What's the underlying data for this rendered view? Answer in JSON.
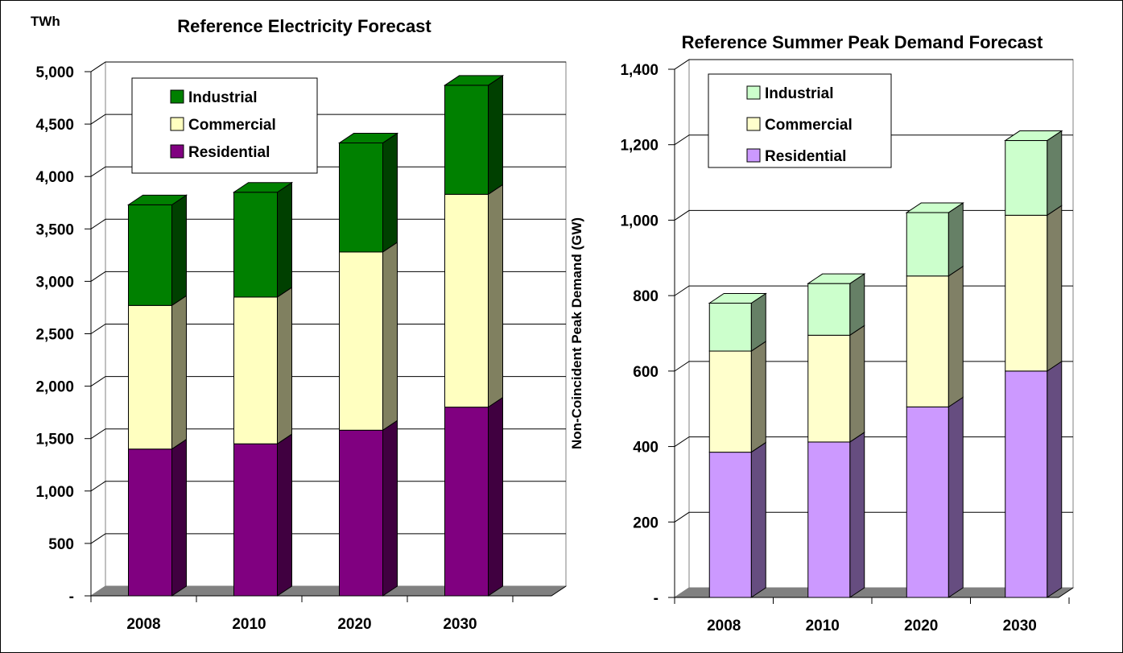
{
  "chart_data": [
    {
      "type": "bar",
      "stacked": true,
      "style": "3d-stacked-column",
      "title": "Reference Electricity Forecast",
      "unit_label": "TWh",
      "ylabel": "",
      "xlabel": "",
      "categories": [
        "2008",
        "2010",
        "2020",
        "2030"
      ],
      "ylim": [
        0,
        5000
      ],
      "yticks": [
        "-",
        "500",
        "1,000",
        "1,500",
        "2,000",
        "2,500",
        "3,000",
        "3,500",
        "4,000",
        "4,500",
        "5,000"
      ],
      "grid": true,
      "legend_position": "top-left",
      "legend_order": [
        "Industrial",
        "Commercial",
        "Residential"
      ],
      "series": [
        {
          "name": "Residential",
          "color": "#800080",
          "side_color": "#400040",
          "values": [
            1400,
            1450,
            1580,
            1800
          ]
        },
        {
          "name": "Commercial",
          "color": "#FFFFC0",
          "side_color": "#808060",
          "values": [
            1370,
            1400,
            1700,
            2030
          ]
        },
        {
          "name": "Industrial",
          "color": "#008000",
          "side_color": "#004000",
          "values": [
            960,
            1000,
            1040,
            1040
          ]
        }
      ]
    },
    {
      "type": "bar",
      "stacked": true,
      "style": "3d-stacked-column",
      "title": "Reference Summer Peak Demand Forecast",
      "unit_label": "",
      "ylabel": "Non-Coincident Peak Demand (GW)",
      "xlabel": "",
      "categories": [
        "2008",
        "2010",
        "2020",
        "2030"
      ],
      "ylim": [
        0,
        1400
      ],
      "yticks": [
        "-",
        "200",
        "400",
        "600",
        "800",
        "1,000",
        "1,200",
        "1,400"
      ],
      "grid": true,
      "legend_position": "top-left",
      "legend_order": [
        "Industrial",
        "Commercial",
        "Residential"
      ],
      "series": [
        {
          "name": "Residential",
          "color": "#CC99FF",
          "side_color": "#664D80",
          "values": [
            385,
            412,
            505,
            600
          ]
        },
        {
          "name": "Commercial",
          "color": "#FFFFCC",
          "side_color": "#808066",
          "values": [
            268,
            283,
            347,
            413
          ]
        },
        {
          "name": "Industrial",
          "color": "#CCFFCC",
          "side_color": "#668066",
          "values": [
            127,
            137,
            168,
            198
          ]
        }
      ]
    }
  ]
}
